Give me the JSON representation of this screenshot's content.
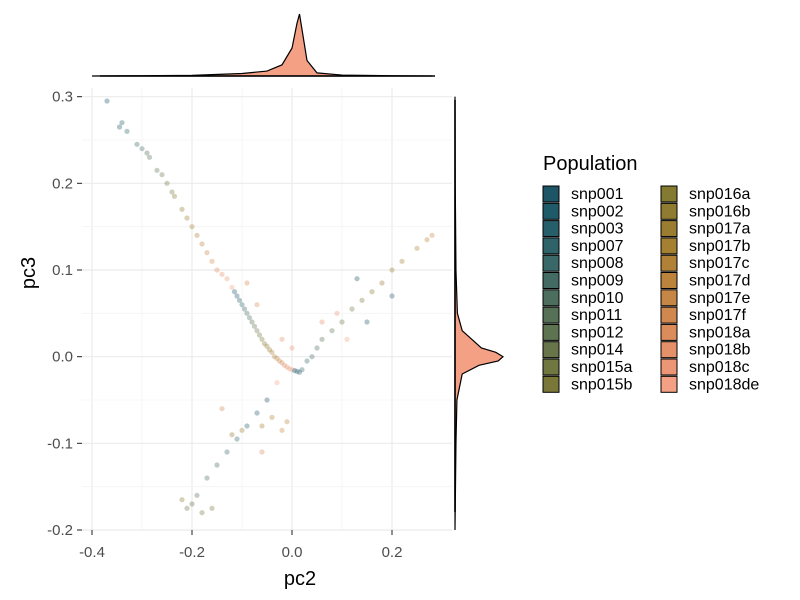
{
  "chart_data": {
    "type": "scatter",
    "xlabel": "pc2",
    "ylabel": "pc3",
    "xlim": [
      -0.42,
      0.32
    ],
    "ylim": [
      -0.2,
      0.31
    ],
    "x_ticks": [
      {
        "value": -0.4,
        "label": "-0.4"
      },
      {
        "value": -0.2,
        "label": "-0.2"
      },
      {
        "value": 0.0,
        "label": "0.0"
      },
      {
        "value": 0.2,
        "label": "0.2"
      }
    ],
    "y_ticks": [
      {
        "value": 0.3,
        "label": "0.3"
      },
      {
        "value": 0.2,
        "label": "0.2"
      },
      {
        "value": 0.1,
        "label": "0.1"
      },
      {
        "value": 0.0,
        "label": "0.0"
      },
      {
        "value": -0.1,
        "label": "-0.1"
      },
      {
        "value": -0.2,
        "label": "-0.2"
      }
    ],
    "grid": true,
    "marginal_plots": "density",
    "legend": {
      "title": "Population",
      "placement": "right",
      "entries": [
        {
          "label": "snp001",
          "color": "#1d5466"
        },
        {
          "label": "snp002",
          "color": "#1f5a69"
        },
        {
          "label": "snp003",
          "color": "#265f6a"
        },
        {
          "label": "snp007",
          "color": "#2e6469"
        },
        {
          "label": "snp008",
          "color": "#386867"
        },
        {
          "label": "snp009",
          "color": "#426b63"
        },
        {
          "label": "snp010",
          "color": "#4c6e5e"
        },
        {
          "label": "snp011",
          "color": "#557157"
        },
        {
          "label": "snp012",
          "color": "#5e7350"
        },
        {
          "label": "snp014",
          "color": "#687548"
        },
        {
          "label": "snp015a",
          "color": "#717740"
        },
        {
          "label": "snp015b",
          "color": "#7a7838"
        },
        {
          "label": "snp016a",
          "color": "#857a32"
        },
        {
          "label": "snp016b",
          "color": "#8f7c30"
        },
        {
          "label": "snp017a",
          "color": "#9a7d30"
        },
        {
          "label": "snp017b",
          "color": "#a57f32"
        },
        {
          "label": "snp017c",
          "color": "#b08136"
        },
        {
          "label": "snp017d",
          "color": "#bb833c"
        },
        {
          "label": "snp017e",
          "color": "#c68645"
        },
        {
          "label": "snp017f",
          "color": "#d1884f"
        },
        {
          "label": "snp018a",
          "color": "#db8c5b"
        },
        {
          "label": "snp018b",
          "color": "#e49068"
        },
        {
          "label": "snp018c",
          "color": "#ec9676"
        },
        {
          "label": "snp018de",
          "color": "#f4a085"
        }
      ]
    },
    "points": [
      {
        "x": -0.37,
        "y": 0.295
      },
      {
        "x": -0.345,
        "y": 0.265
      },
      {
        "x": -0.34,
        "y": 0.27
      },
      {
        "x": -0.33,
        "y": 0.26
      },
      {
        "x": -0.31,
        "y": 0.245
      },
      {
        "x": -0.3,
        "y": 0.24
      },
      {
        "x": -0.29,
        "y": 0.235
      },
      {
        "x": -0.285,
        "y": 0.23
      },
      {
        "x": -0.27,
        "y": 0.215
      },
      {
        "x": -0.26,
        "y": 0.21
      },
      {
        "x": -0.25,
        "y": 0.2
      },
      {
        "x": -0.24,
        "y": 0.19
      },
      {
        "x": -0.235,
        "y": 0.185
      },
      {
        "x": -0.22,
        "y": 0.17
      },
      {
        "x": -0.21,
        "y": 0.16
      },
      {
        "x": -0.2,
        "y": 0.15
      },
      {
        "x": -0.19,
        "y": 0.14
      },
      {
        "x": -0.18,
        "y": 0.13
      },
      {
        "x": -0.17,
        "y": 0.12
      },
      {
        "x": -0.16,
        "y": 0.11
      },
      {
        "x": -0.15,
        "y": 0.1
      },
      {
        "x": -0.14,
        "y": 0.095
      },
      {
        "x": -0.13,
        "y": 0.09
      },
      {
        "x": -0.12,
        "y": 0.08
      },
      {
        "x": -0.115,
        "y": 0.075
      },
      {
        "x": -0.11,
        "y": 0.07
      },
      {
        "x": -0.105,
        "y": 0.065
      },
      {
        "x": -0.1,
        "y": 0.06
      },
      {
        "x": -0.095,
        "y": 0.055
      },
      {
        "x": -0.09,
        "y": 0.05
      },
      {
        "x": -0.085,
        "y": 0.045
      },
      {
        "x": -0.08,
        "y": 0.04
      },
      {
        "x": -0.075,
        "y": 0.035
      },
      {
        "x": -0.07,
        "y": 0.03
      },
      {
        "x": -0.065,
        "y": 0.025
      },
      {
        "x": -0.06,
        "y": 0.02
      },
      {
        "x": -0.055,
        "y": 0.015
      },
      {
        "x": -0.05,
        "y": 0.012
      },
      {
        "x": -0.045,
        "y": 0.008
      },
      {
        "x": -0.04,
        "y": 0.005
      },
      {
        "x": -0.035,
        "y": 0.0
      },
      {
        "x": -0.03,
        "y": -0.002
      },
      {
        "x": -0.025,
        "y": -0.005
      },
      {
        "x": -0.02,
        "y": -0.007
      },
      {
        "x": -0.015,
        "y": -0.01
      },
      {
        "x": -0.01,
        "y": -0.012
      },
      {
        "x": -0.005,
        "y": -0.014
      },
      {
        "x": 0.0,
        "y": -0.015
      },
      {
        "x": 0.005,
        "y": -0.016
      },
      {
        "x": 0.01,
        "y": -0.017
      },
      {
        "x": 0.015,
        "y": -0.018
      },
      {
        "x": 0.02,
        "y": -0.015
      },
      {
        "x": 0.03,
        "y": -0.005
      },
      {
        "x": 0.04,
        "y": 0.0
      },
      {
        "x": 0.05,
        "y": 0.01
      },
      {
        "x": 0.06,
        "y": 0.02
      },
      {
        "x": 0.08,
        "y": 0.03
      },
      {
        "x": 0.1,
        "y": 0.04
      },
      {
        "x": 0.12,
        "y": 0.055
      },
      {
        "x": 0.14,
        "y": 0.065
      },
      {
        "x": 0.16,
        "y": 0.075
      },
      {
        "x": 0.18,
        "y": 0.085
      },
      {
        "x": 0.2,
        "y": 0.1
      },
      {
        "x": 0.22,
        "y": 0.11
      },
      {
        "x": 0.25,
        "y": 0.125
      },
      {
        "x": 0.27,
        "y": 0.135
      },
      {
        "x": 0.28,
        "y": 0.14
      },
      {
        "x": -0.09,
        "y": 0.085
      },
      {
        "x": -0.07,
        "y": 0.06
      },
      {
        "x": -0.02,
        "y": 0.02
      },
      {
        "x": 0.0,
        "y": 0.01
      },
      {
        "x": -0.03,
        "y": -0.03
      },
      {
        "x": -0.05,
        "y": -0.05
      },
      {
        "x": -0.07,
        "y": -0.065
      },
      {
        "x": -0.09,
        "y": -0.08
      },
      {
        "x": -0.11,
        "y": -0.095
      },
      {
        "x": -0.13,
        "y": -0.11
      },
      {
        "x": -0.15,
        "y": -0.125
      },
      {
        "x": -0.17,
        "y": -0.14
      },
      {
        "x": -0.19,
        "y": -0.16
      },
      {
        "x": -0.2,
        "y": -0.17
      },
      {
        "x": -0.21,
        "y": -0.175
      },
      {
        "x": -0.18,
        "y": -0.18
      },
      {
        "x": -0.16,
        "y": -0.175
      },
      {
        "x": -0.22,
        "y": -0.165
      },
      {
        "x": -0.12,
        "y": -0.09
      },
      {
        "x": -0.1,
        "y": -0.085
      },
      {
        "x": -0.06,
        "y": -0.08
      },
      {
        "x": -0.04,
        "y": -0.07
      },
      {
        "x": -0.01,
        "y": -0.075
      },
      {
        "x": -0.02,
        "y": -0.085
      },
      {
        "x": -0.14,
        "y": -0.06
      },
      {
        "x": -0.06,
        "y": -0.11
      },
      {
        "x": 0.06,
        "y": 0.04
      },
      {
        "x": 0.09,
        "y": 0.05
      },
      {
        "x": 0.11,
        "y": 0.02
      },
      {
        "x": 0.13,
        "y": 0.09
      },
      {
        "x": 0.15,
        "y": 0.04
      },
      {
        "x": 0.2,
        "y": 0.07
      }
    ],
    "x_density": [
      {
        "x": -0.4,
        "d": 0.0
      },
      {
        "x": -0.3,
        "d": 0.005
      },
      {
        "x": -0.2,
        "d": 0.01
      },
      {
        "x": -0.1,
        "d": 0.04
      },
      {
        "x": -0.05,
        "d": 0.08
      },
      {
        "x": -0.02,
        "d": 0.18
      },
      {
        "x": 0.0,
        "d": 0.45
      },
      {
        "x": 0.01,
        "d": 0.85
      },
      {
        "x": 0.015,
        "d": 1.0
      },
      {
        "x": 0.02,
        "d": 0.75
      },
      {
        "x": 0.03,
        "d": 0.25
      },
      {
        "x": 0.05,
        "d": 0.05
      },
      {
        "x": 0.1,
        "d": 0.015
      },
      {
        "x": 0.2,
        "d": 0.005
      },
      {
        "x": 0.28,
        "d": 0.0
      }
    ],
    "y_density": [
      {
        "y": -0.2,
        "d": 0.0
      },
      {
        "y": -0.1,
        "d": 0.02
      },
      {
        "y": -0.05,
        "d": 0.04
      },
      {
        "y": -0.02,
        "d": 0.15
      },
      {
        "y": -0.01,
        "d": 0.5
      },
      {
        "y": -0.005,
        "d": 0.9
      },
      {
        "y": 0.0,
        "d": 1.0
      },
      {
        "y": 0.005,
        "d": 0.85
      },
      {
        "y": 0.01,
        "d": 0.55
      },
      {
        "y": 0.02,
        "d": 0.35
      },
      {
        "y": 0.03,
        "d": 0.15
      },
      {
        "y": 0.05,
        "d": 0.05
      },
      {
        "y": 0.1,
        "d": 0.02
      },
      {
        "y": 0.2,
        "d": 0.005
      },
      {
        "y": 0.3,
        "d": 0.0
      }
    ]
  }
}
